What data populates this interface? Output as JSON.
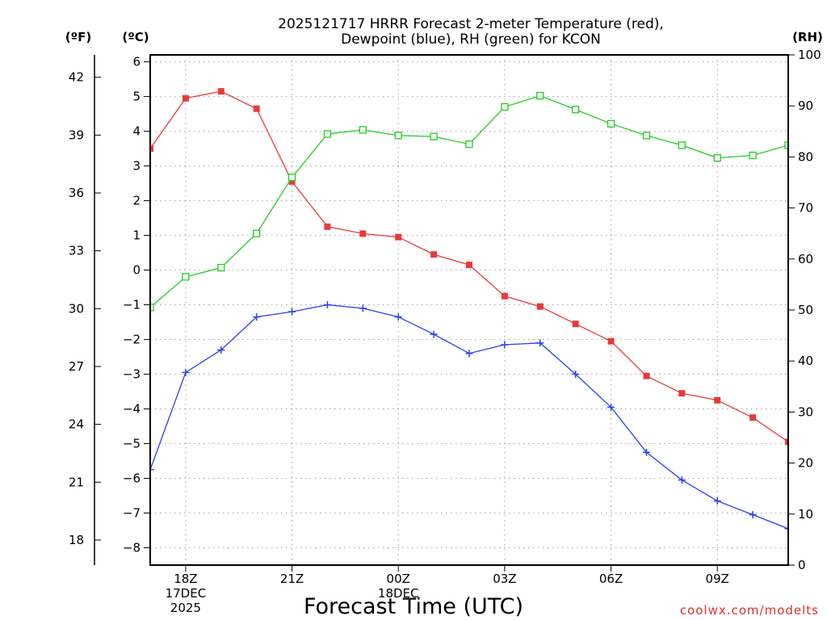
{
  "chart_data": {
    "type": "line",
    "title_lines": [
      "2025121717 HRRR Forecast 2-meter Temperature (red),",
      "Dewpoint (blue), RH (green) for KCON"
    ],
    "xlabel": "Forecast Time (UTC)",
    "credit": "coolwx.com/modelts",
    "left_unit_f": "(ºF)",
    "left_unit_c": "(ºC)",
    "right_unit": "(RH)",
    "x_hours": [
      17,
      18,
      19,
      20,
      21,
      22,
      23,
      24,
      25,
      26,
      27,
      28,
      29,
      30,
      31,
      32,
      33,
      34,
      35
    ],
    "x_ticks": [
      {
        "hour": 18,
        "lines": [
          "18Z",
          "17DEC",
          "2025"
        ]
      },
      {
        "hour": 21,
        "lines": [
          "21Z"
        ]
      },
      {
        "hour": 24,
        "lines": [
          "00Z",
          "18DEC"
        ]
      },
      {
        "hour": 27,
        "lines": [
          "03Z"
        ]
      },
      {
        "hour": 30,
        "lines": [
          "06Z"
        ]
      },
      {
        "hour": 33,
        "lines": [
          "09Z"
        ]
      }
    ],
    "xlim": [
      17,
      35
    ],
    "ylim_c": [
      -8.5,
      6.2
    ],
    "yticks_c": [
      -8,
      -7,
      -6,
      -5,
      -4,
      -3,
      -2,
      -1,
      0,
      1,
      2,
      3,
      4,
      5,
      6
    ],
    "yticks_c_labels": [
      "−8",
      "−7",
      "−6",
      "−5",
      "−4",
      "−3",
      "−2",
      "−1",
      "0",
      "1",
      "2",
      "3",
      "4",
      "5",
      "6"
    ],
    "yticks_f": [
      "18",
      "21",
      "24",
      "27",
      "30",
      "33",
      "36",
      "39",
      "42"
    ],
    "ylim_rh": [
      0,
      100
    ],
    "yticks_rh": [
      "0",
      "10",
      "20",
      "30",
      "40",
      "50",
      "60",
      "70",
      "80",
      "90",
      "100"
    ],
    "series": [
      {
        "name": "Temperature",
        "color": "#e83a3a",
        "marker": "filled-square",
        "axis": "c",
        "values": [
          3.5,
          4.95,
          5.15,
          4.65,
          2.55,
          1.25,
          1.05,
          0.95,
          0.45,
          0.15,
          -0.75,
          -1.05,
          -1.55,
          -2.05,
          -3.05,
          -3.55,
          -3.75,
          -4.25,
          -4.95
        ]
      },
      {
        "name": "Dewpoint",
        "color": "#2a3ff0",
        "marker": "plus",
        "axis": "c",
        "values": [
          -5.75,
          -2.95,
          -2.3,
          -1.35,
          -1.2,
          -1.0,
          -1.1,
          -1.35,
          -1.85,
          -2.4,
          -2.15,
          -2.1,
          -3.0,
          -3.95,
          -5.25,
          -6.05,
          -6.65,
          -7.05,
          -7.45
        ]
      },
      {
        "name": "RH",
        "color": "#22cc22",
        "marker": "open-square",
        "axis": "rh",
        "values": [
          50.5,
          56.5,
          58.3,
          65.0,
          76.0,
          84.5,
          85.3,
          84.2,
          84.0,
          82.5,
          89.8,
          92.0,
          89.3,
          86.5,
          84.2,
          82.3,
          79.8,
          80.3,
          82.3
        ]
      }
    ]
  }
}
